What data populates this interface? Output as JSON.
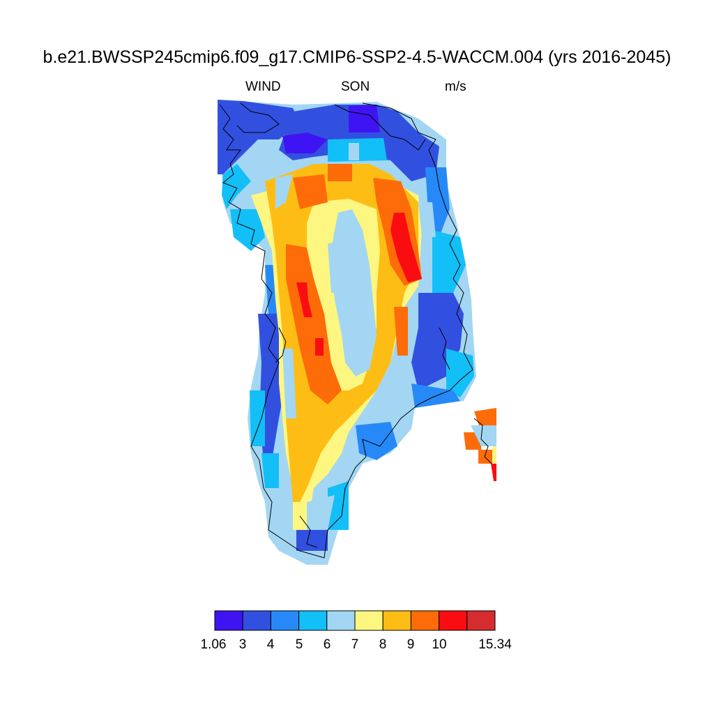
{
  "title": "b.e21.BWSSP245cmip6.f09_g17.CMIP6-SSP2-4.5-WACCM.004 (yrs 2016-2045)",
  "left_label": "WIND",
  "center_label": "SON",
  "right_label": "m/s",
  "colorbar": {
    "colors": [
      "#3f14f2",
      "#3250e0",
      "#2789f7",
      "#12bff7",
      "#a3d6f2",
      "#fdf681",
      "#fdbd14",
      "#fd6c08",
      "#fa0d10",
      "#d52c30"
    ],
    "tick_labels": [
      "1.06",
      "3",
      "4",
      "5",
      "6",
      "7",
      "8",
      "9",
      "10",
      "15.34"
    ]
  }
}
